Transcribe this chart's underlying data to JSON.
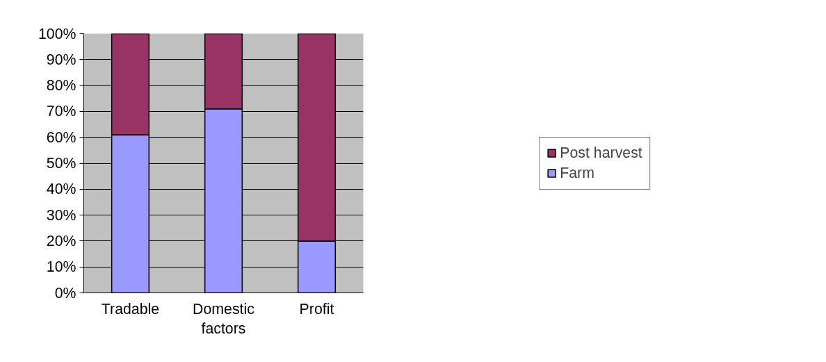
{
  "chart_data": {
    "type": "bar",
    "stacked": true,
    "categories": [
      "Tradable",
      "Domestic factors",
      "Profit"
    ],
    "series": [
      {
        "name": "Farm",
        "color": "#9999ff",
        "values": [
          61,
          71,
          20
        ]
      },
      {
        "name": "Post harvest",
        "color": "#993366",
        "values": [
          39,
          29,
          80
        ]
      }
    ],
    "ylim": [
      0,
      100
    ],
    "yticks": [
      {
        "value": 0,
        "label": "0%"
      },
      {
        "value": 10,
        "label": "10%"
      },
      {
        "value": 20,
        "label": "20%"
      },
      {
        "value": 30,
        "label": "30%"
      },
      {
        "value": 40,
        "label": "40%"
      },
      {
        "value": 50,
        "label": "50%"
      },
      {
        "value": 60,
        "label": "60%"
      },
      {
        "value": 70,
        "label": "70%"
      },
      {
        "value": 80,
        "label": "80%"
      },
      {
        "value": 90,
        "label": "90%"
      },
      {
        "value": 100,
        "label": "100%"
      }
    ],
    "grid": "y",
    "legend": "right"
  }
}
